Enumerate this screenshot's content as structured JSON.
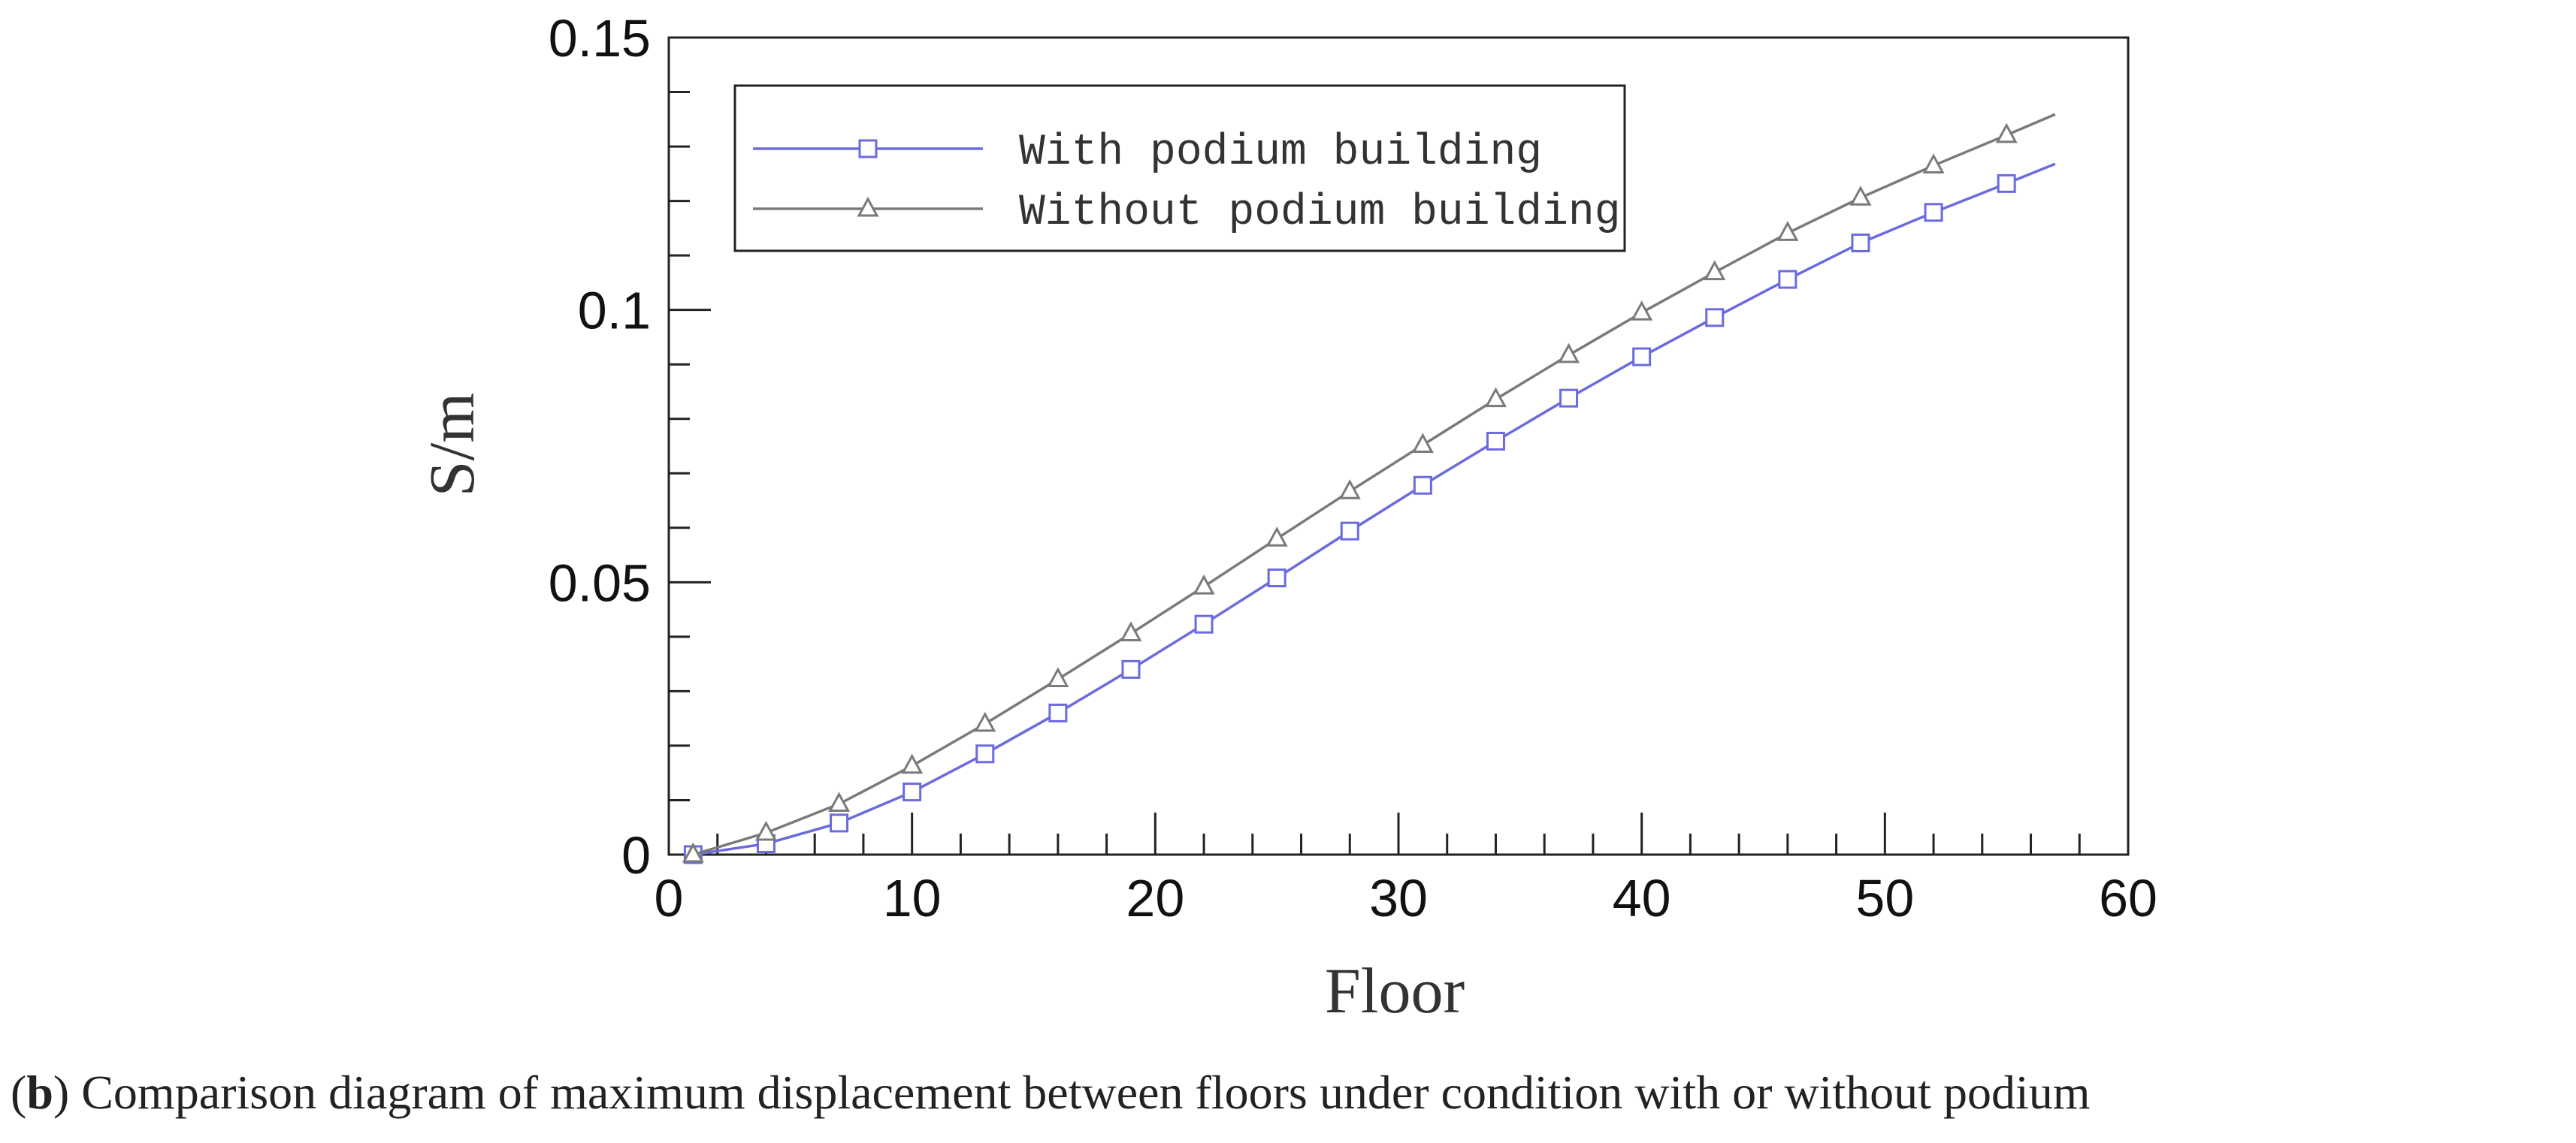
{
  "chart_data": {
    "type": "line",
    "xlabel": "Floor",
    "ylabel": "S/m",
    "xlim": [
      0,
      60
    ],
    "ylim": [
      0,
      0.15
    ],
    "x_ticks": [
      "0",
      "10",
      "20",
      "30",
      "40",
      "50",
      "60"
    ],
    "y_ticks": [
      "0",
      "0.05",
      "0.1",
      "0.15"
    ],
    "grid": false,
    "legend_position": "top-left",
    "series": [
      {
        "name": "With podium building",
        "color": "#6b6be0",
        "marker": "square",
        "x": [
          1,
          4,
          7,
          10,
          13,
          16,
          19,
          22,
          25,
          28,
          31,
          34,
          37,
          40,
          43,
          46,
          49,
          52,
          55
        ],
        "y": [
          0.0,
          0.002,
          0.0058,
          0.0115,
          0.0185,
          0.026,
          0.034,
          0.0423,
          0.0508,
          0.0594,
          0.0678,
          0.0759,
          0.0838,
          0.0914,
          0.0986,
          0.1056,
          0.1123,
          0.1179,
          0.1232
        ],
        "end": [
          57,
          0.1268
        ]
      },
      {
        "name": "Without podium building",
        "color": "#7a7a7a",
        "marker": "triangle",
        "x": [
          1,
          4,
          7,
          10,
          13,
          16,
          19,
          22,
          25,
          28,
          31,
          34,
          37,
          40,
          43,
          46,
          49,
          52,
          55
        ],
        "y": [
          0.0,
          0.004,
          0.0093,
          0.0163,
          0.024,
          0.0322,
          0.0406,
          0.0492,
          0.058,
          0.0667,
          0.0752,
          0.0836,
          0.0917,
          0.0995,
          0.1069,
          0.1141,
          0.1206,
          0.1265,
          0.1321
        ],
        "end": [
          57,
          0.1359
        ]
      }
    ]
  },
  "caption": {
    "letter": "b",
    "text": " Comparison diagram of maximum displacement between floors under condition with or without podium"
  }
}
